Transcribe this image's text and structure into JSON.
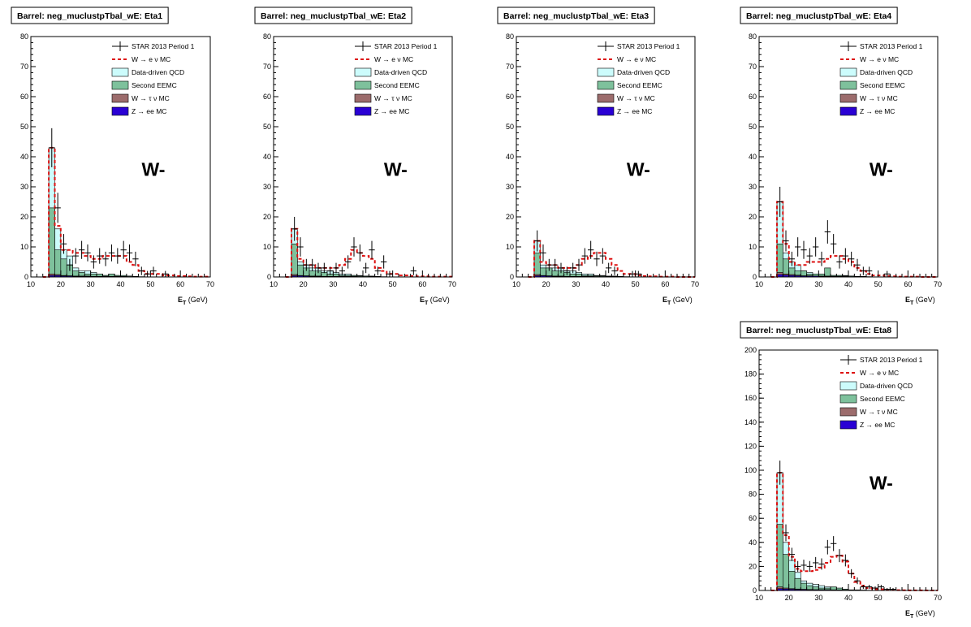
{
  "colors": {
    "qcd": "#ccfcfc",
    "eemc": "#7ec19c",
    "wtau": "#9c6c6c",
    "zee": "#2a00d4",
    "wmc": "#dd1111",
    "data": "#000000"
  },
  "legend": [
    {
      "key": "data",
      "label": "STAR 2013 Period 1",
      "style": "marker"
    },
    {
      "key": "wmc",
      "label": "W  → e  ν MC",
      "style": "dashed"
    },
    {
      "key": "qcd",
      "label": "Data-driven QCD",
      "style": "box"
    },
    {
      "key": "eemc",
      "label": "Second EEMC",
      "style": "box"
    },
    {
      "key": "wtau",
      "label": "W  → τ ν MC",
      "style": "box"
    },
    {
      "key": "zee",
      "label": "Z  → ee MC",
      "style": "box"
    }
  ],
  "chart_data": [
    {
      "type": "bar",
      "title": "Barrel: neg_muclustpTbal_wE: Eta1",
      "annotation": "W-",
      "xlabel_main": "E",
      "xlabel_sub": "T",
      "xlabel_unit": "(GeV)",
      "xlim": [
        10,
        70
      ],
      "ylim": [
        0,
        80
      ],
      "xticks": [
        10,
        20,
        30,
        40,
        50,
        60,
        70
      ],
      "yticks": [
        0,
        10,
        20,
        30,
        40,
        50,
        60,
        70,
        80
      ],
      "bin_start": 14,
      "bin_width": 2,
      "data": [
        0,
        43,
        23,
        11,
        4,
        7,
        9,
        8,
        5,
        7,
        6,
        8,
        7,
        9,
        8,
        6,
        2,
        1,
        2,
        0,
        1,
        0,
        0,
        0,
        0,
        0,
        0,
        0
      ],
      "error": [
        0,
        6.5,
        5,
        3.3,
        2,
        2.6,
        3,
        2.8,
        2.2,
        2.6,
        2.4,
        2.8,
        2.6,
        3,
        2.8,
        2.4,
        1.4,
        1,
        1.4,
        0,
        1,
        0,
        0,
        0,
        0,
        0,
        0,
        0
      ],
      "wmc": [
        0,
        43,
        17,
        9,
        9,
        8,
        8,
        7,
        6,
        6,
        7,
        7,
        7,
        7,
        5,
        4,
        2,
        1,
        1,
        1,
        0.5,
        0.5,
        0.3,
        0.3,
        0.2,
        0.1,
        0.1,
        0.1
      ],
      "qcd": [
        0,
        43,
        16,
        9,
        7,
        3,
        2,
        2,
        1.5,
        1,
        0.5,
        0.5,
        0.5,
        0.3,
        0.3,
        0.2,
        0.1,
        0,
        0,
        0,
        0,
        0,
        0,
        0,
        0,
        0,
        0,
        0
      ],
      "eemc": [
        0,
        23,
        9,
        6,
        4,
        2,
        1.5,
        1,
        1,
        1,
        0.5,
        1,
        0.5,
        0.5,
        0.3,
        0.2,
        0,
        0,
        0,
        0,
        0,
        0,
        0,
        0,
        0,
        0,
        0,
        0
      ],
      "wtau": [
        0,
        1,
        0.8,
        0.5,
        0.4,
        0.3,
        0.3,
        0.3,
        0.2,
        0.2,
        0.2,
        0.2,
        0.1,
        0.1,
        0.1,
        0,
        0,
        0,
        0,
        0,
        0,
        0,
        0,
        0,
        0,
        0,
        0,
        0
      ],
      "zee": [
        0,
        0.5,
        0.5,
        0.3,
        0.3,
        0.2,
        0.2,
        0.2,
        0.2,
        0.2,
        0.2,
        0.2,
        0.2,
        0.2,
        0.1,
        0.1,
        0,
        0,
        0,
        0,
        0,
        0,
        0,
        0,
        0,
        0,
        0,
        0
      ]
    },
    {
      "type": "bar",
      "title": "Barrel: neg_muclustpTbal_wE: Eta2",
      "annotation": "W-",
      "xlabel_main": "E",
      "xlabel_sub": "T",
      "xlabel_unit": "(GeV)",
      "xlim": [
        10,
        70
      ],
      "ylim": [
        0,
        80
      ],
      "xticks": [
        10,
        20,
        30,
        40,
        50,
        60,
        70
      ],
      "yticks": [
        0,
        10,
        20,
        30,
        40,
        50,
        60,
        70,
        80
      ],
      "bin_start": 14,
      "bin_width": 2,
      "data": [
        0,
        16,
        10,
        4,
        4,
        3,
        3,
        2,
        3,
        2,
        5,
        10,
        8,
        3,
        9,
        2,
        5,
        1,
        0,
        0,
        0,
        2,
        0,
        0,
        0,
        0,
        0,
        0
      ],
      "error": [
        0,
        4,
        3.2,
        2,
        2,
        1.7,
        1.7,
        1.4,
        1.7,
        1.4,
        2.2,
        3.2,
        2.8,
        1.7,
        3,
        1.4,
        2.2,
        1,
        0,
        0,
        0,
        1.4,
        0,
        0,
        0,
        0,
        0,
        0
      ],
      "wmc": [
        0,
        16,
        6,
        4,
        4,
        3,
        3,
        3,
        3,
        4,
        6,
        9,
        8,
        7,
        6,
        3,
        2,
        1,
        1,
        0.5,
        0.5,
        0.3,
        0.2,
        0.2,
        0.1,
        0.1,
        0.1,
        0.1
      ],
      "qcd": [
        0,
        16,
        5,
        4,
        3,
        3,
        2,
        2,
        1.5,
        1,
        1,
        0.5,
        0.5,
        0.3,
        0.3,
        0.2,
        0.1,
        0,
        0,
        0,
        0,
        0,
        0,
        0,
        0,
        0,
        0,
        0
      ],
      "eemc": [
        0,
        11,
        4,
        3,
        2,
        2,
        1.5,
        1,
        1,
        0.5,
        0.5,
        0.5,
        0.3,
        0.3,
        0.2,
        0.1,
        0,
        0,
        0,
        0,
        0,
        0,
        0,
        0,
        0,
        0,
        0,
        0
      ],
      "wtau": [
        0,
        0.8,
        0.5,
        0.4,
        0.3,
        0.3,
        0.2,
        0.2,
        0.2,
        0.2,
        0.2,
        0.2,
        0.1,
        0.1,
        0.1,
        0,
        0,
        0,
        0,
        0,
        0,
        0,
        0,
        0,
        0,
        0,
        0,
        0
      ],
      "zee": [
        0,
        0.4,
        0.4,
        0.3,
        0.2,
        0.2,
        0.2,
        0.2,
        0.2,
        0.2,
        0.2,
        0.2,
        0.1,
        0.1,
        0.1,
        0,
        0,
        0,
        0,
        0,
        0,
        0,
        0,
        0,
        0,
        0,
        0,
        0
      ]
    },
    {
      "type": "bar",
      "title": "Barrel: neg_muclustpTbal_wE: Eta3",
      "annotation": "W-",
      "xlabel_main": "E",
      "xlabel_sub": "T",
      "xlabel_unit": "(GeV)",
      "xlim": [
        10,
        70
      ],
      "ylim": [
        0,
        80
      ],
      "xticks": [
        10,
        20,
        30,
        40,
        50,
        60,
        70
      ],
      "yticks": [
        0,
        10,
        20,
        30,
        40,
        50,
        60,
        70,
        80
      ],
      "bin_start": 14,
      "bin_width": 2,
      "data": [
        0,
        12,
        8,
        4,
        4,
        3,
        2,
        3,
        4,
        7,
        9,
        6,
        7,
        3,
        2,
        0,
        0,
        1,
        1,
        0,
        0,
        0,
        0,
        0,
        0,
        0,
        0,
        0
      ],
      "error": [
        0,
        3.5,
        2.8,
        2,
        2,
        1.7,
        1.4,
        1.7,
        2,
        2.6,
        3,
        2.4,
        2.6,
        1.7,
        1.4,
        0,
        0,
        1,
        1,
        0,
        0,
        0,
        0,
        0,
        0,
        0,
        0,
        0
      ],
      "wmc": [
        0,
        12,
        5,
        4,
        4,
        3,
        3,
        3,
        4,
        6,
        7,
        8,
        8,
        6,
        4,
        2,
        1,
        1,
        0.5,
        0.3,
        0.2,
        0.2,
        0.1,
        0.1,
        0.1,
        0,
        0,
        0
      ],
      "qcd": [
        0,
        12,
        4,
        3,
        3,
        3,
        2,
        2,
        1.5,
        1,
        1,
        0.5,
        0.5,
        0.3,
        0.3,
        0.2,
        0.1,
        0,
        0,
        0,
        0,
        0,
        0,
        0,
        0,
        0,
        0,
        0
      ],
      "eemc": [
        0,
        8,
        3,
        3,
        2,
        2,
        1.5,
        1,
        1,
        0.5,
        0.5,
        0.3,
        0.3,
        0.2,
        0.2,
        0.1,
        0,
        0,
        0,
        0,
        0,
        0,
        0,
        0,
        0,
        0,
        0,
        0
      ],
      "wtau": [
        0,
        0.8,
        0.5,
        0.4,
        0.3,
        0.3,
        0.2,
        0.2,
        0.2,
        0.2,
        0.2,
        0.1,
        0.1,
        0.1,
        0,
        0,
        0,
        0,
        0,
        0,
        0,
        0,
        0,
        0,
        0,
        0,
        0,
        0
      ],
      "zee": [
        0,
        0.4,
        0.4,
        0.3,
        0.2,
        0.2,
        0.2,
        0.2,
        0.2,
        0.2,
        0.2,
        0.1,
        0.1,
        0.1,
        0,
        0,
        0,
        0,
        0,
        0,
        0,
        0,
        0,
        0,
        0,
        0,
        0,
        0
      ]
    },
    {
      "type": "bar",
      "title": "Barrel: neg_muclustpTbal_wE: Eta4",
      "annotation": "W-",
      "xlabel_main": "E",
      "xlabel_sub": "T",
      "xlabel_unit": "(GeV)",
      "xlim": [
        10,
        70
      ],
      "ylim": [
        0,
        80
      ],
      "xticks": [
        10,
        20,
        30,
        40,
        50,
        60,
        70
      ],
      "yticks": [
        0,
        10,
        20,
        30,
        40,
        50,
        60,
        70,
        80
      ],
      "bin_start": 14,
      "bin_width": 2,
      "data": [
        0,
        25,
        12,
        6,
        10,
        9,
        7,
        10,
        6,
        15,
        11,
        5,
        7,
        6,
        4,
        2,
        2,
        0,
        0,
        1,
        0,
        0,
        0,
        0,
        0,
        0,
        0,
        0
      ],
      "error": [
        0,
        5,
        3.5,
        2.4,
        3.2,
        3,
        2.6,
        3.2,
        2.4,
        3.9,
        3.3,
        2.2,
        2.6,
        2.4,
        2,
        1.4,
        1.4,
        0,
        0,
        1,
        0,
        0,
        0,
        0,
        0,
        0,
        0,
        0
      ],
      "wmc": [
        0,
        25,
        11,
        5,
        4,
        4,
        5,
        5,
        5,
        6,
        7,
        7,
        6,
        5,
        3,
        2,
        1,
        0.5,
        0.5,
        0.3,
        0.2,
        0.1,
        0.1,
        0.1,
        0.1,
        0,
        0,
        0
      ],
      "qcd": [
        0,
        25,
        8,
        5,
        4,
        2,
        1.5,
        1,
        1,
        1,
        0.5,
        0.5,
        0.5,
        0.3,
        0.2,
        0.2,
        0.1,
        0,
        0,
        0,
        0,
        0,
        0,
        0,
        0,
        0,
        0,
        0
      ],
      "eemc": [
        0,
        11,
        6,
        3,
        2,
        2,
        1,
        1,
        1,
        3,
        0.5,
        0.5,
        0.3,
        0.3,
        0.2,
        0.1,
        0,
        0,
        0,
        0,
        0,
        0,
        0,
        0,
        0,
        0,
        0,
        0
      ],
      "wtau": [
        0,
        1.5,
        1,
        0.8,
        0.6,
        0.4,
        0.4,
        0.3,
        0.3,
        0.3,
        0.2,
        0.2,
        0.2,
        0.1,
        0.1,
        0,
        0,
        0,
        0,
        0,
        0,
        0,
        0,
        0,
        0,
        0,
        0,
        0
      ],
      "zee": [
        0,
        0.8,
        0.6,
        0.5,
        0.4,
        0.3,
        0.3,
        0.3,
        0.2,
        0.2,
        0.2,
        0.2,
        0.2,
        0.1,
        0.1,
        0,
        0,
        0,
        0,
        0,
        0,
        0,
        0,
        0,
        0,
        0,
        0,
        0
      ]
    },
    {
      "type": "bar",
      "title": "Barrel: neg_muclustpTbal_wE: Eta8",
      "annotation": "W-",
      "xlabel_main": "E",
      "xlabel_sub": "T",
      "xlabel_unit": "(GeV)",
      "xlim": [
        10,
        70
      ],
      "ylim": [
        0,
        200
      ],
      "xticks": [
        10,
        20,
        30,
        40,
        50,
        60,
        70
      ],
      "yticks": [
        0,
        20,
        40,
        60,
        80,
        100,
        120,
        140,
        160,
        180,
        200
      ],
      "bin_start": 14,
      "bin_width": 2,
      "data": [
        0,
        98,
        48,
        30,
        20,
        21,
        20,
        23,
        22,
        36,
        39,
        29,
        25,
        14,
        8,
        3,
        3,
        2,
        3,
        1,
        1,
        0,
        0,
        0,
        0,
        0,
        0,
        0
      ],
      "error": [
        0,
        10,
        7,
        5.5,
        4.5,
        4.6,
        4.5,
        4.8,
        4.7,
        6,
        6.2,
        5.4,
        5,
        3.7,
        2.8,
        1.7,
        1.7,
        1.4,
        1.7,
        1,
        1,
        0,
        0,
        0,
        0,
        0,
        0,
        0
      ],
      "wmc": [
        0,
        98,
        46,
        28,
        18,
        16,
        16,
        17,
        19,
        23,
        28,
        29,
        24,
        14,
        7,
        4,
        2,
        1,
        1,
        0.5,
        0.5,
        0.3,
        0.2,
        0.1,
        0.1,
        0.1,
        0,
        0
      ],
      "qcd": [
        0,
        98,
        40,
        25,
        15,
        8,
        6,
        5,
        4,
        3,
        2,
        1.5,
        1,
        0.5,
        0.5,
        0.3,
        0.2,
        0,
        0,
        0,
        0,
        0,
        0,
        0,
        0,
        0,
        0,
        0
      ],
      "eemc": [
        0,
        55,
        30,
        16,
        10,
        6,
        4,
        3,
        2,
        2,
        3,
        2,
        1,
        0.5,
        0.3,
        0.2,
        0,
        0,
        0,
        0,
        0,
        0,
        0,
        0,
        0,
        0,
        0,
        0
      ],
      "wtau": [
        0,
        3,
        2,
        1.5,
        1.2,
        1,
        0.8,
        0.6,
        0.6,
        0.6,
        0.5,
        0.4,
        0.3,
        0.2,
        0.1,
        0,
        0,
        0,
        0,
        0,
        0,
        0,
        0,
        0,
        0,
        0,
        0,
        0
      ],
      "zee": [
        0,
        1.5,
        1.2,
        1,
        0.8,
        0.7,
        0.6,
        0.6,
        0.6,
        0.6,
        0.5,
        0.4,
        0.3,
        0.2,
        0.1,
        0,
        0,
        0,
        0,
        0,
        0,
        0,
        0,
        0,
        0,
        0,
        0,
        0
      ]
    }
  ]
}
